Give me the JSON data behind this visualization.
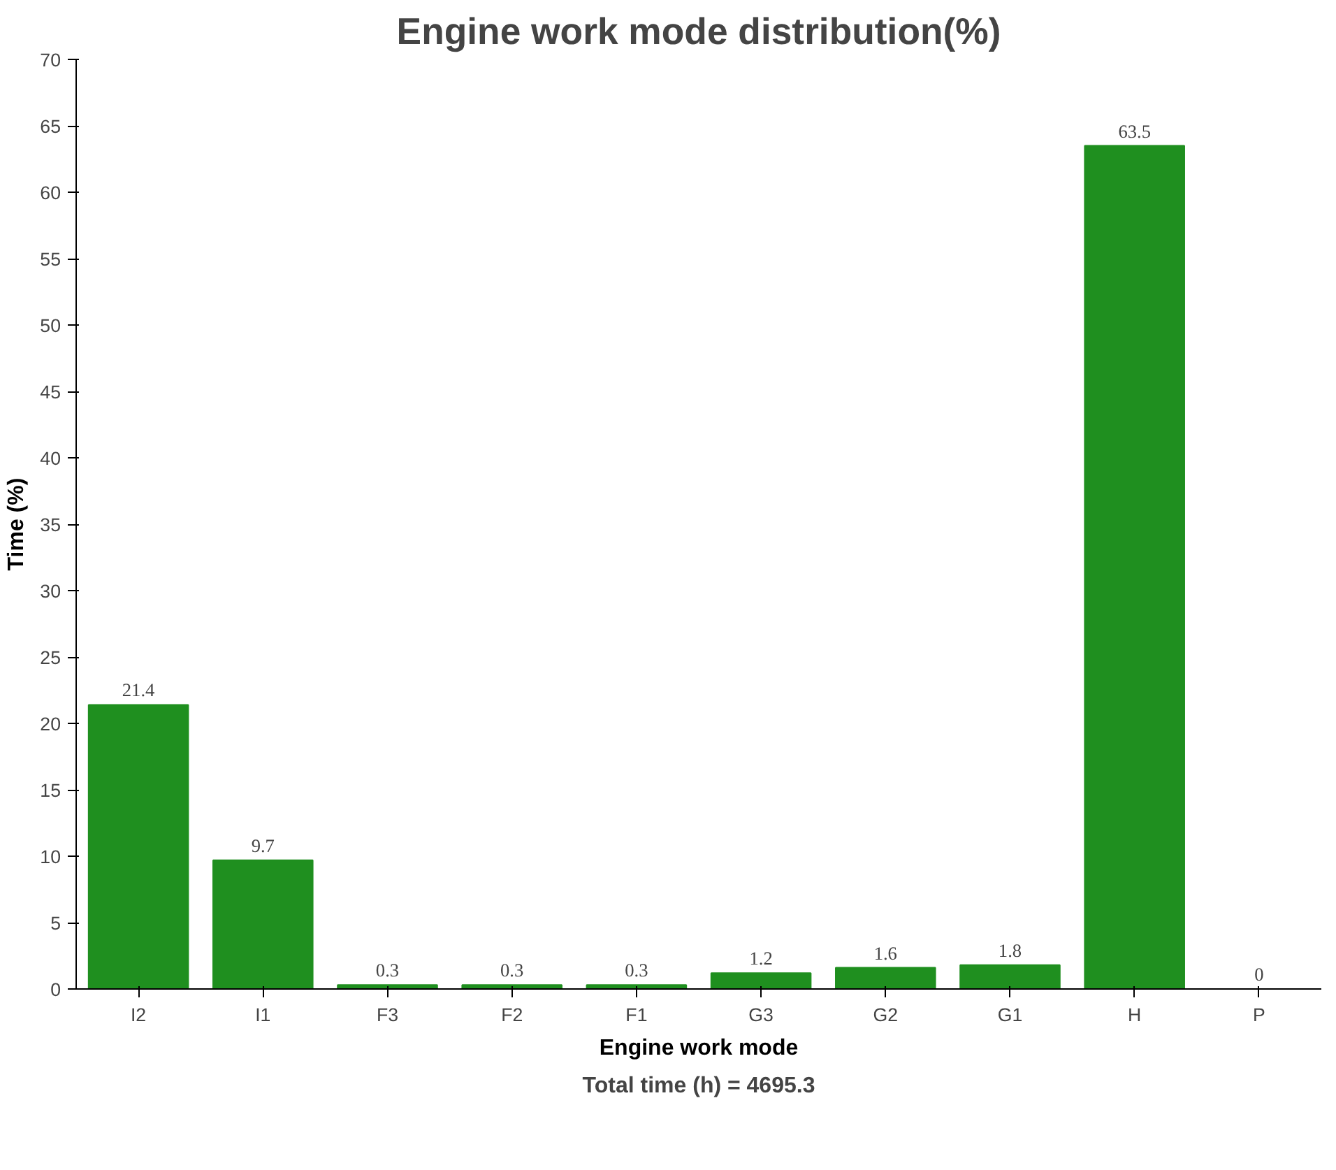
{
  "chart_data": {
    "type": "bar",
    "title": "Engine work mode distribution(%)",
    "xlabel": "Engine work mode",
    "ylabel": "Time (%)",
    "categories": [
      "I2",
      "I1",
      "F3",
      "F2",
      "F1",
      "G3",
      "G2",
      "G1",
      "H",
      "P"
    ],
    "values": [
      21.4,
      9.7,
      0.3,
      0.3,
      0.3,
      1.2,
      1.6,
      1.8,
      63.5,
      0
    ],
    "color": "#1f8f1f",
    "ylim": [
      0,
      70
    ],
    "yticks": [
      0,
      5,
      10,
      15,
      20,
      25,
      30,
      35,
      40,
      45,
      50,
      55,
      60,
      65,
      70
    ],
    "grid": false,
    "data_labels": true,
    "annotations": [
      "Total time (h) = 4695.3"
    ]
  }
}
